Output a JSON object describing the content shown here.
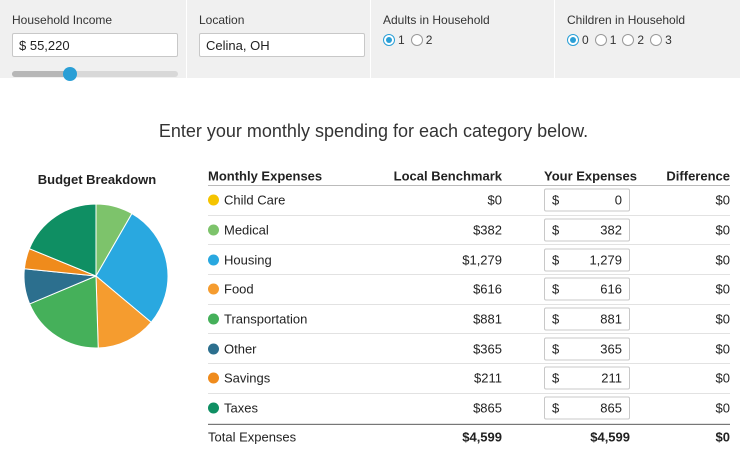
{
  "top": {
    "income": {
      "label": "Household Income",
      "value": "$ 55,220",
      "slider_position": 0.35
    },
    "location": {
      "label": "Location",
      "value": "Celina, OH"
    },
    "adults": {
      "label": "Adults in Household",
      "options": [
        "1",
        "2"
      ],
      "selected": "1"
    },
    "children": {
      "label": "Children in Household",
      "options": [
        "0",
        "1",
        "2",
        "3"
      ],
      "selected": "0"
    }
  },
  "heading": "Enter your monthly spending for each category below.",
  "budget": {
    "title": "Budget Breakdown"
  },
  "table": {
    "headers": {
      "name": "Monthly Expenses",
      "bench": "Local Benchmark",
      "your": "Your Expenses",
      "diff": "Difference"
    },
    "rows": [
      {
        "name": "Child Care",
        "color": "#f5c400",
        "bench": "$0",
        "cur": "$",
        "your": "0",
        "diff": "$0",
        "value": 0
      },
      {
        "name": "Medical",
        "color": "#7dc36b",
        "bench": "$382",
        "cur": "$",
        "your": "382",
        "diff": "$0",
        "value": 382
      },
      {
        "name": "Housing",
        "color": "#29a8e0",
        "bench": "$1,279",
        "cur": "$",
        "your": "1,279",
        "diff": "$0",
        "value": 1279
      },
      {
        "name": "Food",
        "color": "#f59c2f",
        "bench": "$616",
        "cur": "$",
        "your": "616",
        "diff": "$0",
        "value": 616
      },
      {
        "name": "Transportation",
        "color": "#45b05a",
        "bench": "$881",
        "cur": "$",
        "your": "881",
        "diff": "$0",
        "value": 881
      },
      {
        "name": "Other",
        "color": "#2c6f8e",
        "bench": "$365",
        "cur": "$",
        "your": "365",
        "diff": "$0",
        "value": 365
      },
      {
        "name": "Savings",
        "color": "#ef8b1c",
        "bench": "$211",
        "cur": "$",
        "your": "211",
        "diff": "$0",
        "value": 211
      },
      {
        "name": "Taxes",
        "color": "#0f8f63",
        "bench": "$865",
        "cur": "$",
        "your": "865",
        "diff": "$0",
        "value": 865
      }
    ],
    "total": {
      "name": "Total Expenses",
      "bench": "$4,599",
      "your": "$4,599",
      "diff": "$0"
    }
  }
}
